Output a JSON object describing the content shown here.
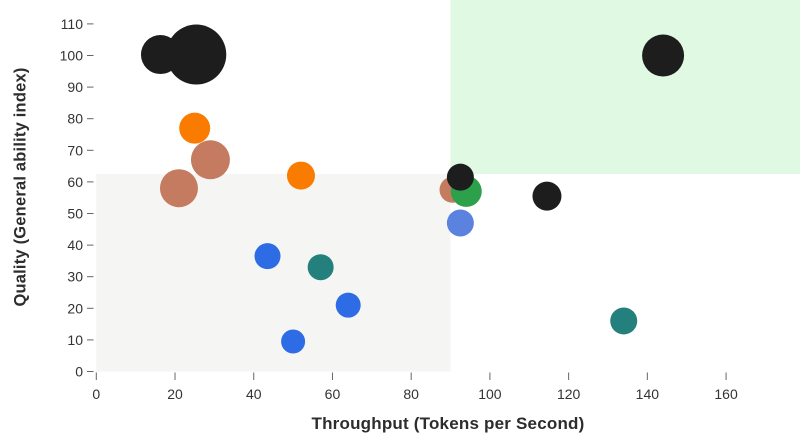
{
  "chart_data": {
    "type": "scatter",
    "title": "",
    "xlabel": "Throughput (Tokens per Second)",
    "ylabel": "Quality (General ability index)",
    "xlim": [
      0,
      178.8
    ],
    "ylim": [
      0,
      117.6
    ],
    "x_ticks": [
      0,
      20,
      40,
      60,
      80,
      100,
      120,
      140,
      160
    ],
    "y_ticks": [
      0,
      10,
      20,
      30,
      40,
      50,
      60,
      70,
      80,
      90,
      100,
      110
    ],
    "grid": false,
    "legend": "none",
    "background_color": "#ffffff",
    "tick_label_color": "#333333",
    "tick_line_color": "#666666",
    "axis_title_color": "#2d2d2d",
    "regions": [
      {
        "name": "lower-left-gray-zone",
        "x0": 0,
        "x1": 90,
        "y0": 0,
        "y1": 62.5,
        "color": "#f5f5f4"
      },
      {
        "name": "upper-right-green-zone",
        "x0": 90,
        "x1": 178.8,
        "y0": 62.5,
        "y1": 117.6,
        "color": "#dff9e3"
      }
    ],
    "palette": {
      "black": "#1d1d1d",
      "orange": "#f97b00",
      "salmon": "#c47b5f",
      "blue": "#2e6ce5",
      "periwinkle": "#5c82e0",
      "teal": "#23807c",
      "green": "#2da04c"
    },
    "points": [
      {
        "color": "salmon",
        "x": 90.5,
        "y": 57.5,
        "r": 13
      },
      {
        "color": "orange",
        "x": 25,
        "y": 77,
        "r": 15.5
      },
      {
        "color": "salmon",
        "x": 29,
        "y": 67,
        "r": 19.5
      },
      {
        "color": "salmon",
        "x": 21,
        "y": 58,
        "r": 19
      },
      {
        "color": "orange",
        "x": 52,
        "y": 62,
        "r": 14
      },
      {
        "color": "blue",
        "x": 43.5,
        "y": 36.5,
        "r": 13
      },
      {
        "color": "teal",
        "x": 57,
        "y": 33,
        "r": 13
      },
      {
        "color": "blue",
        "x": 64,
        "y": 21,
        "r": 12.5
      },
      {
        "color": "blue",
        "x": 50,
        "y": 9.5,
        "r": 12
      },
      {
        "color": "periwinkle",
        "x": 92.5,
        "y": 47,
        "r": 13.5
      },
      {
        "color": "green",
        "x": 94,
        "y": 57,
        "r": 15.5
      },
      {
        "color": "black",
        "x": 16.3,
        "y": 100.3,
        "r": 19.5
      },
      {
        "color": "black",
        "x": 25.4,
        "y": 100.3,
        "r": 30
      },
      {
        "color": "black",
        "x": 92.5,
        "y": 61.5,
        "r": 13.5
      },
      {
        "color": "black",
        "x": 114.5,
        "y": 55.5,
        "r": 14.5
      },
      {
        "color": "black",
        "x": 144,
        "y": 100,
        "r": 21
      },
      {
        "color": "teal",
        "x": 134,
        "y": 16,
        "r": 13.5
      }
    ]
  }
}
